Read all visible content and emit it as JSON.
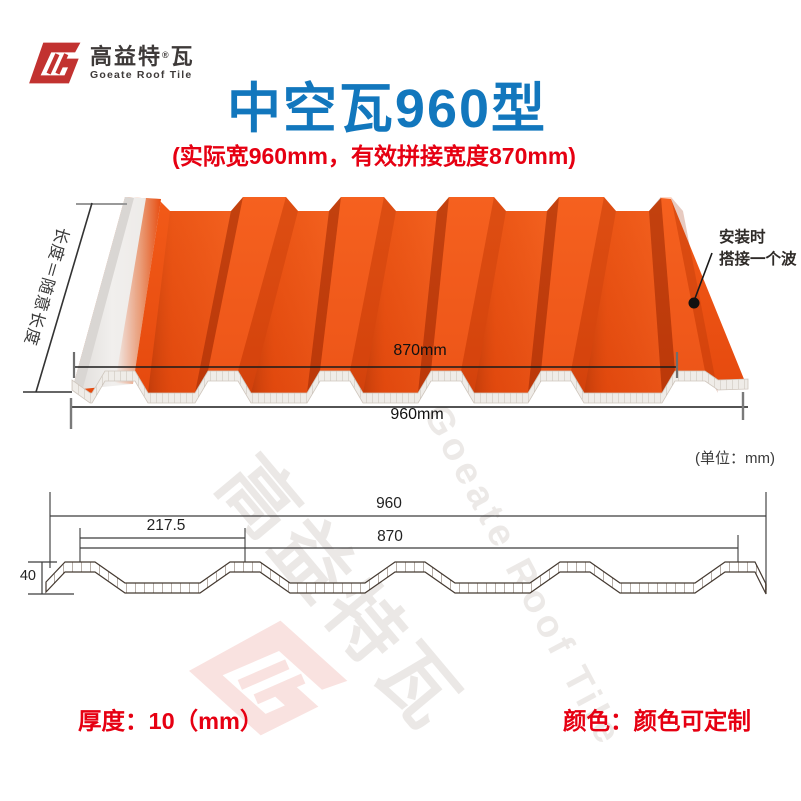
{
  "logo": {
    "brand_cn": "高益特",
    "reg_mark": "®",
    "brand_cn_suffix": "瓦",
    "brand_en": "Goeate Roof Tile"
  },
  "header": {
    "title": "中空瓦960型",
    "subtitle": "(实际宽960mm，有效拼接宽度870mm)"
  },
  "photo": {
    "length_note": "长度＝随意长度",
    "install_note_line1": "安装时",
    "install_note_line2": "搭接一个波",
    "width_effective_label": "870mm",
    "width_total_label": "960mm"
  },
  "units_note": "(单位：mm)",
  "section": {
    "dim_total": "960",
    "dim_effective": "870",
    "dim_pitch": "217.5",
    "dim_height": "40"
  },
  "footer": {
    "thickness_label": "厚度：10（mm）",
    "color_label": "颜色：颜色可定制"
  },
  "watermark": {
    "cn": "高益特瓦",
    "en": "Goeate Roof Tile"
  },
  "dimensions_mm": {
    "actual_width": 960,
    "effective_width": 870,
    "wave_pitch": 217.5,
    "wave_height": 40,
    "thickness": 10
  },
  "colors": {
    "accent_blue": "#1277bd",
    "accent_red": "#e60012",
    "tile_orange": "#ed4f12",
    "logo_red": "#c23230"
  }
}
